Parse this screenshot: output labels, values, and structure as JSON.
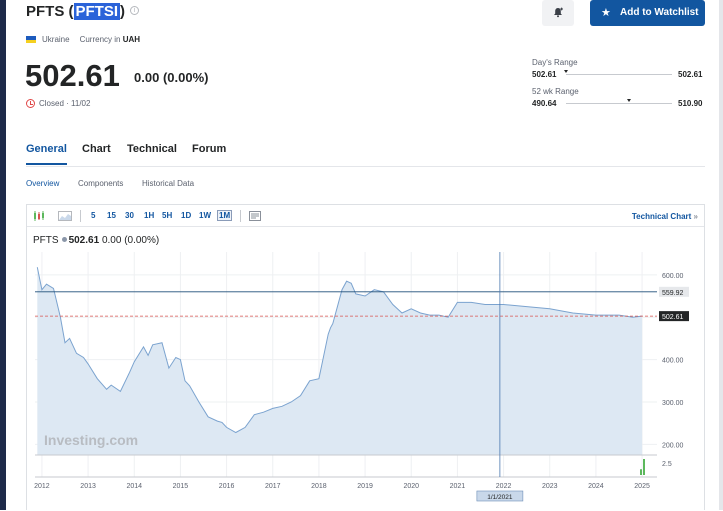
{
  "header": {
    "title_prefix": "PFTS (",
    "title_symbol": "PFTSI",
    "title_suffix": ")",
    "info_icon": "info-icon",
    "bell_icon": "bell-plus-icon",
    "watchlist_label": "Add to Watchlist",
    "star_icon": "star-icon"
  },
  "meta": {
    "country": "Ukraine",
    "currency_label": "Currency in",
    "currency": "UAH",
    "flag_colors": [
      "#1d5bbd",
      "#f5d020"
    ]
  },
  "quote": {
    "price": "502.61",
    "change": "0.00",
    "change_pct": "(0.00%)",
    "status": "Closed · 11/02"
  },
  "ranges": {
    "day_label": "Day's Range",
    "day_low": "502.61",
    "day_high": "502.61",
    "day_position": 0.0,
    "wk52_label": "52 wk Range",
    "wk52_low": "490.64",
    "wk52_high": "510.90",
    "wk52_position": 0.59
  },
  "tabs": [
    "General",
    "Chart",
    "Technical",
    "Forum"
  ],
  "active_tab": "General",
  "subtabs": [
    "Overview",
    "Components",
    "Historical Data"
  ],
  "active_subtab": "Overview",
  "toolbar": {
    "intervals": [
      "5",
      "15",
      "30",
      "1H",
      "5H",
      "1D",
      "1W",
      "1M"
    ],
    "active_interval": "1M",
    "technical_link": "Technical Chart",
    "link_arrow": "»"
  },
  "legend": {
    "symbol": "PFTS",
    "price": "502.61",
    "change": "0.00",
    "change_pct": "(0.00%)"
  },
  "watermark": "Investing.com",
  "colors": {
    "accent": "#1256a0",
    "area_fill": "#dde8f3",
    "area_line": "#7ba3cf",
    "ref_line": "#1f4e79",
    "last_line": "#d9534f",
    "volume": "#5cb85c"
  },
  "chart_data": {
    "type": "area",
    "x_ticks": [
      "2012",
      "2013",
      "2014",
      "2015",
      "2016",
      "2017",
      "2018",
      "2019",
      "2020",
      "2021",
      "2022",
      "2023",
      "2024",
      "2025"
    ],
    "y_ticks": [
      600,
      500,
      400,
      300,
      200
    ],
    "y_tick_labels": [
      "600.00",
      "400.00",
      "300.00",
      "200.00"
    ],
    "ylim": [
      175,
      635
    ],
    "xlim": [
      2011.85,
      2025.15
    ],
    "volume_label": "2.5",
    "horizontal_line": {
      "value": 559.92,
      "label": "559.92"
    },
    "last_value": {
      "value": 502.61,
      "label": "502.61"
    },
    "crosshair": {
      "x": 2021.92,
      "label": "1/1/2021"
    },
    "series": [
      {
        "x": [
          2011.9,
          2012.0,
          2012.1,
          2012.25,
          2012.4,
          2012.5,
          2012.6,
          2012.75,
          2012.9,
          2013.0,
          2013.2,
          2013.4,
          2013.5,
          2013.7,
          2013.9,
          2014.0,
          2014.2,
          2014.3,
          2014.4,
          2014.6,
          2014.75,
          2014.9,
          2015.0,
          2015.1,
          2015.2,
          2015.4,
          2015.6,
          2015.8,
          2015.9,
          2016.0,
          2016.2,
          2016.4,
          2016.6,
          2016.8,
          2017.0,
          2017.2,
          2017.4,
          2017.6,
          2017.8,
          2018.0,
          2018.2,
          2018.25,
          2018.3,
          2018.5,
          2018.6,
          2018.7,
          2018.8,
          2019.0,
          2019.2,
          2019.4,
          2019.6,
          2019.8,
          2020.0,
          2020.2,
          2020.4,
          2020.6,
          2020.8,
          2021.0,
          2021.3,
          2021.6,
          2022.0,
          2022.5,
          2023.0,
          2023.5,
          2024.0,
          2024.5,
          2024.8,
          2025.0
        ],
        "y": [
          618,
          565,
          578,
          568,
          500,
          440,
          450,
          415,
          405,
          390,
          355,
          330,
          340,
          325,
          370,
          395,
          430,
          410,
          435,
          440,
          380,
          405,
          400,
          350,
          338,
          300,
          265,
          255,
          252,
          240,
          228,
          240,
          270,
          276,
          285,
          290,
          300,
          315,
          350,
          355,
          460,
          475,
          485,
          565,
          585,
          580,
          555,
          550,
          565,
          560,
          530,
          510,
          520,
          510,
          505,
          505,
          500,
          535,
          535,
          530,
          530,
          525,
          520,
          510,
          505,
          505,
          500,
          502.61
        ]
      }
    ],
    "volume": [
      0.9,
      2.5
    ]
  }
}
